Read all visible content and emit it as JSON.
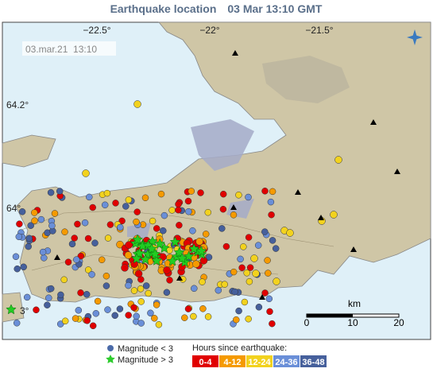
{
  "header": {
    "title": "Earthquake location",
    "time": "03 Mar 13:10 GMT"
  },
  "map": {
    "timestamp": "03.mar.21  13:10",
    "lon_labels": [
      "−22.5°",
      "−22°",
      "−21.5°"
    ],
    "lat_labels": [
      "64.2°",
      "64°",
      "3°"
    ],
    "scale": {
      "unit": "km",
      "ticks": [
        "0",
        "10",
        "20"
      ]
    }
  },
  "legend": {
    "magnitude": [
      "Magnitude < 3",
      "Magnitude > 3"
    ],
    "hours_title": "Hours since earthquake:",
    "hours": [
      "0-4",
      "4-12",
      "12-24",
      "24-36",
      "36-48"
    ]
  }
}
